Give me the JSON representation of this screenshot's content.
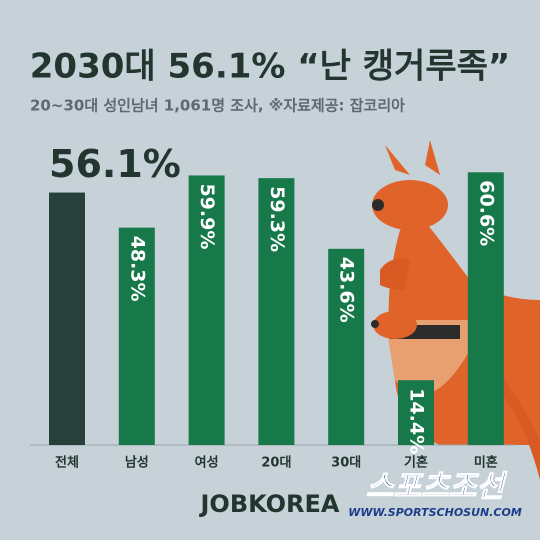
{
  "chart_data": {
    "type": "bar",
    "title": "2030대 56.1% “난 캥거루족”",
    "subtitle": "20~30대 성인남녀 1,061명 조사,  ※자료제공: 잡코리아",
    "categories": [
      "전체",
      "남성",
      "여성",
      "20대",
      "30대",
      "기혼",
      "미혼"
    ],
    "values": [
      56.1,
      48.3,
      59.9,
      59.3,
      43.6,
      14.4,
      60.6
    ],
    "value_labels": [
      "56.1%",
      "48.3%",
      "59.9%",
      "59.3%",
      "43.6%",
      "14.4%",
      "60.6%"
    ],
    "colors": [
      "#27403a",
      "#17784a",
      "#17784a",
      "#17784a",
      "#17784a",
      "#17784a",
      "#17784a"
    ]
  },
  "footer": {
    "brand": "JOBKOREA",
    "source": "스포츠조선",
    "url": "WWW.SPORTSCHOSUN.COM"
  }
}
